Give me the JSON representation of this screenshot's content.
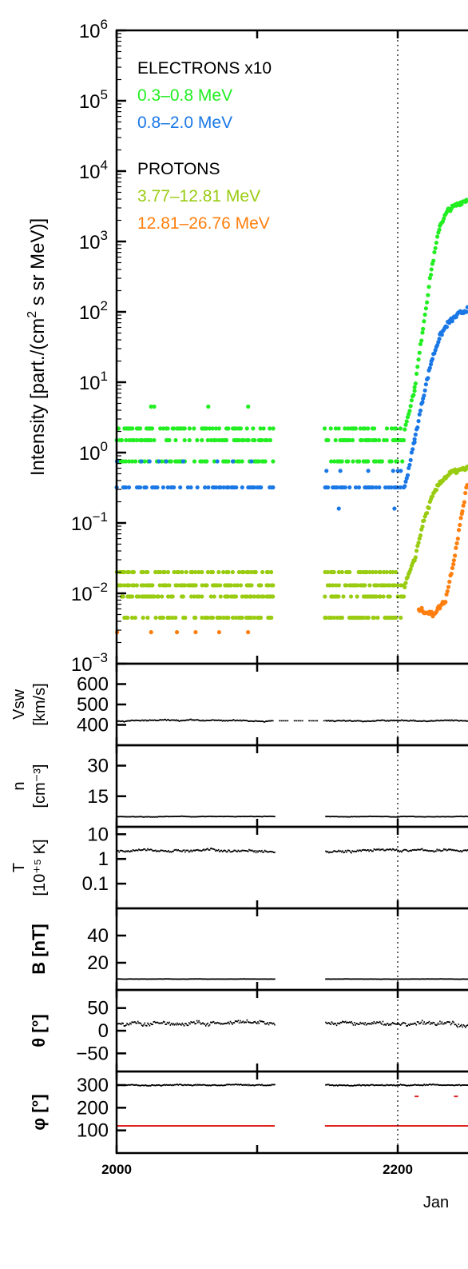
{
  "chart_data": {
    "type": "scatter",
    "x_axis": {
      "ticks": [
        2000,
        2200
      ],
      "tick_labels": [
        "2000",
        "2200"
      ],
      "range": [
        2000,
        2250
      ],
      "label": "Jan",
      "vertical_marker": 2200
    },
    "panels": [
      {
        "id": "intensity",
        "ylabel": "Intensity [part./(cm2 s sr MeV)]",
        "ylabel_parts": {
          "pre": "Intensity [part./(cm",
          "sup": "2",
          "post": " s sr MeV)]"
        },
        "log": true,
        "ylim_exp": [
          -3,
          6
        ],
        "ytick_exps": [
          -3,
          -2,
          -1,
          0,
          1,
          2,
          3,
          4,
          5,
          6
        ],
        "legend": [
          {
            "header": "ELECTRONS x10",
            "color": "#000000"
          },
          {
            "label": "0.3–0.8 MeV",
            "color": "#22ee22"
          },
          {
            "label": "0.8–2.0 MeV",
            "color": "#1a78e6"
          },
          {
            "header": "PROTONS",
            "color": "#000000"
          },
          {
            "label": "3.77–12.81 MeV",
            "color": "#99cc11"
          },
          {
            "label": "12.81–26.76 MeV",
            "color": "#ff7f0e"
          }
        ],
        "series": [
          {
            "name": "0.3–0.8 MeV",
            "color": "#22ee22",
            "segments": [
              {
                "kind": "levels",
                "x_range": [
                  2000,
                  2112
                ],
                "levels": [
                  0.75,
                  1.5,
                  2.2,
                  4.5
                ],
                "sparse": [
                  4.5
                ]
              },
              {
                "kind": "levels",
                "x_range": [
                  2148,
                  2205
                ],
                "levels": [
                  0.75,
                  1.5,
                  2.2
                ],
                "sparse": []
              },
              {
                "kind": "curve",
                "points": [
                  [
                    2205,
                    2.2
                  ],
                  [
                    2212,
                    8
                  ],
                  [
                    2218,
                    60
                  ],
                  [
                    2224,
                    400
                  ],
                  [
                    2230,
                    1700
                  ],
                  [
                    2236,
                    2800
                  ],
                  [
                    2244,
                    3500
                  ],
                  [
                    2250,
                    4000
                  ]
                ]
              }
            ]
          },
          {
            "name": "0.8–2.0 MeV",
            "color": "#1a78e6",
            "segments": [
              {
                "kind": "levels",
                "x_range": [
                  2000,
                  2112
                ],
                "levels": [
                  0.32,
                  0.75
                ],
                "sparse": [
                  0.75
                ]
              },
              {
                "kind": "levels",
                "x_range": [
                  2148,
                  2205
                ],
                "levels": [
                  0.32,
                  0.16,
                  0.55
                ],
                "sparse": [
                  0.16,
                  0.55
                ]
              },
              {
                "kind": "curve",
                "points": [
                  [
                    2205,
                    0.32
                  ],
                  [
                    2212,
                    1.5
                  ],
                  [
                    2218,
                    6
                  ],
                  [
                    2224,
                    20
                  ],
                  [
                    2230,
                    45
                  ],
                  [
                    2236,
                    70
                  ],
                  [
                    2244,
                    95
                  ],
                  [
                    2250,
                    110
                  ]
                ]
              }
            ]
          },
          {
            "name": "3.77–12.81 MeV",
            "color": "#99cc11",
            "segments": [
              {
                "kind": "levels",
                "x_range": [
                  2000,
                  2112
                ],
                "levels": [
                  0.0045,
                  0.009,
                  0.013,
                  0.02
                ],
                "sparse": []
              },
              {
                "kind": "levels",
                "x_range": [
                  2148,
                  2205
                ],
                "levels": [
                  0.0045,
                  0.009,
                  0.013,
                  0.02
                ],
                "sparse": []
              },
              {
                "kind": "curve",
                "points": [
                  [
                    2205,
                    0.013
                  ],
                  [
                    2212,
                    0.03
                  ],
                  [
                    2218,
                    0.1
                  ],
                  [
                    2224,
                    0.22
                  ],
                  [
                    2230,
                    0.38
                  ],
                  [
                    2238,
                    0.52
                  ],
                  [
                    2250,
                    0.6
                  ]
                ]
              }
            ]
          },
          {
            "name": "12.81–26.76 MeV",
            "color": "#ff7f0e",
            "segments": [
              {
                "kind": "levels",
                "x_range": [
                  2000,
                  2112
                ],
                "levels": [
                  0.0028
                ],
                "sparse": [
                  0.0028
                ]
              },
              {
                "kind": "curve",
                "points": [
                  [
                    2215,
                    0.006
                  ],
                  [
                    2225,
                    0.005
                  ],
                  [
                    2234,
                    0.008
                  ],
                  [
                    2240,
                    0.03
                  ],
                  [
                    2246,
                    0.15
                  ],
                  [
                    2250,
                    0.4
                  ]
                ]
              }
            ]
          }
        ]
      },
      {
        "id": "vsw",
        "ylabel_top": "Vsw",
        "ylabel_bottom": "[km/s]",
        "log": false,
        "ylim": [
          300,
          700
        ],
        "ytick_vals": [
          400,
          500,
          600
        ],
        "ytick_labels": [
          "400",
          "500",
          "600"
        ],
        "series": [
          {
            "name": "Vsw",
            "color": "#000000",
            "mean": 420,
            "noise": 12,
            "gaps": [],
            "dashed_gap": [
              2110,
              2148
            ]
          }
        ]
      },
      {
        "id": "density",
        "ylabel_top": "n",
        "ylabel_bottom": "[cm⁻³]",
        "log": false,
        "ylim": [
          0,
          40
        ],
        "ytick_vals": [
          15,
          30
        ],
        "ytick_labels": [
          "15",
          "30"
        ],
        "series": [
          {
            "name": "n",
            "color": "#000000",
            "mean": 5,
            "noise": 0.5,
            "gaps": [
              [
                2112,
                2148
              ]
            ]
          }
        ]
      },
      {
        "id": "temperature",
        "ylabel_top": "T",
        "ylabel_bottom": "[10⁺⁵ K]",
        "log": true,
        "ylim_exp": [
          -2,
          1.3
        ],
        "ytick_vals": [
          0.1,
          1,
          10
        ],
        "ytick_labels": [
          "0.1",
          "1",
          "10"
        ],
        "series": [
          {
            "name": "T",
            "color": "#000000",
            "mean": 2.2,
            "noise": 0.5,
            "gaps": [
              [
                2112,
                2148
              ]
            ]
          }
        ]
      },
      {
        "id": "bfield",
        "ylabel": "B [nT]",
        "log": false,
        "ylim": [
          0,
          60
        ],
        "ytick_vals": [
          20,
          40
        ],
        "ytick_labels": [
          "20",
          "40"
        ],
        "series": [
          {
            "name": "B",
            "color": "#000000",
            "mean": 8,
            "noise": 0.4,
            "gaps": [
              [
                2112,
                2148
              ]
            ]
          }
        ]
      },
      {
        "id": "theta",
        "ylabel": "θ [°]",
        "log": false,
        "ylim": [
          -90,
          90
        ],
        "ytick_vals": [
          -50,
          0,
          50
        ],
        "ytick_labels": [
          "−50",
          "0",
          "50"
        ],
        "series": [
          {
            "name": "theta",
            "color": "#000000",
            "mean": 15,
            "noise": 18,
            "gaps": [
              [
                2112,
                2148
              ]
            ]
          }
        ]
      },
      {
        "id": "phi",
        "ylabel": "φ [°]",
        "log": false,
        "ylim": [
          0,
          360
        ],
        "ytick_vals": [
          100,
          200,
          300
        ],
        "ytick_labels": [
          "100",
          "200",
          "300"
        ],
        "series": [
          {
            "name": "phi",
            "color": "#000000",
            "mean": 300,
            "noise": 10,
            "gaps": [
              [
                2112,
                2148
              ]
            ]
          },
          {
            "name": "phi-ref",
            "color": "#dd2222",
            "flat": 120,
            "gaps": [
              [
                2112,
                2148
              ]
            ],
            "marks": [
              [
                2212,
                250
              ],
              [
                2240,
                250
              ]
            ]
          }
        ]
      }
    ]
  }
}
